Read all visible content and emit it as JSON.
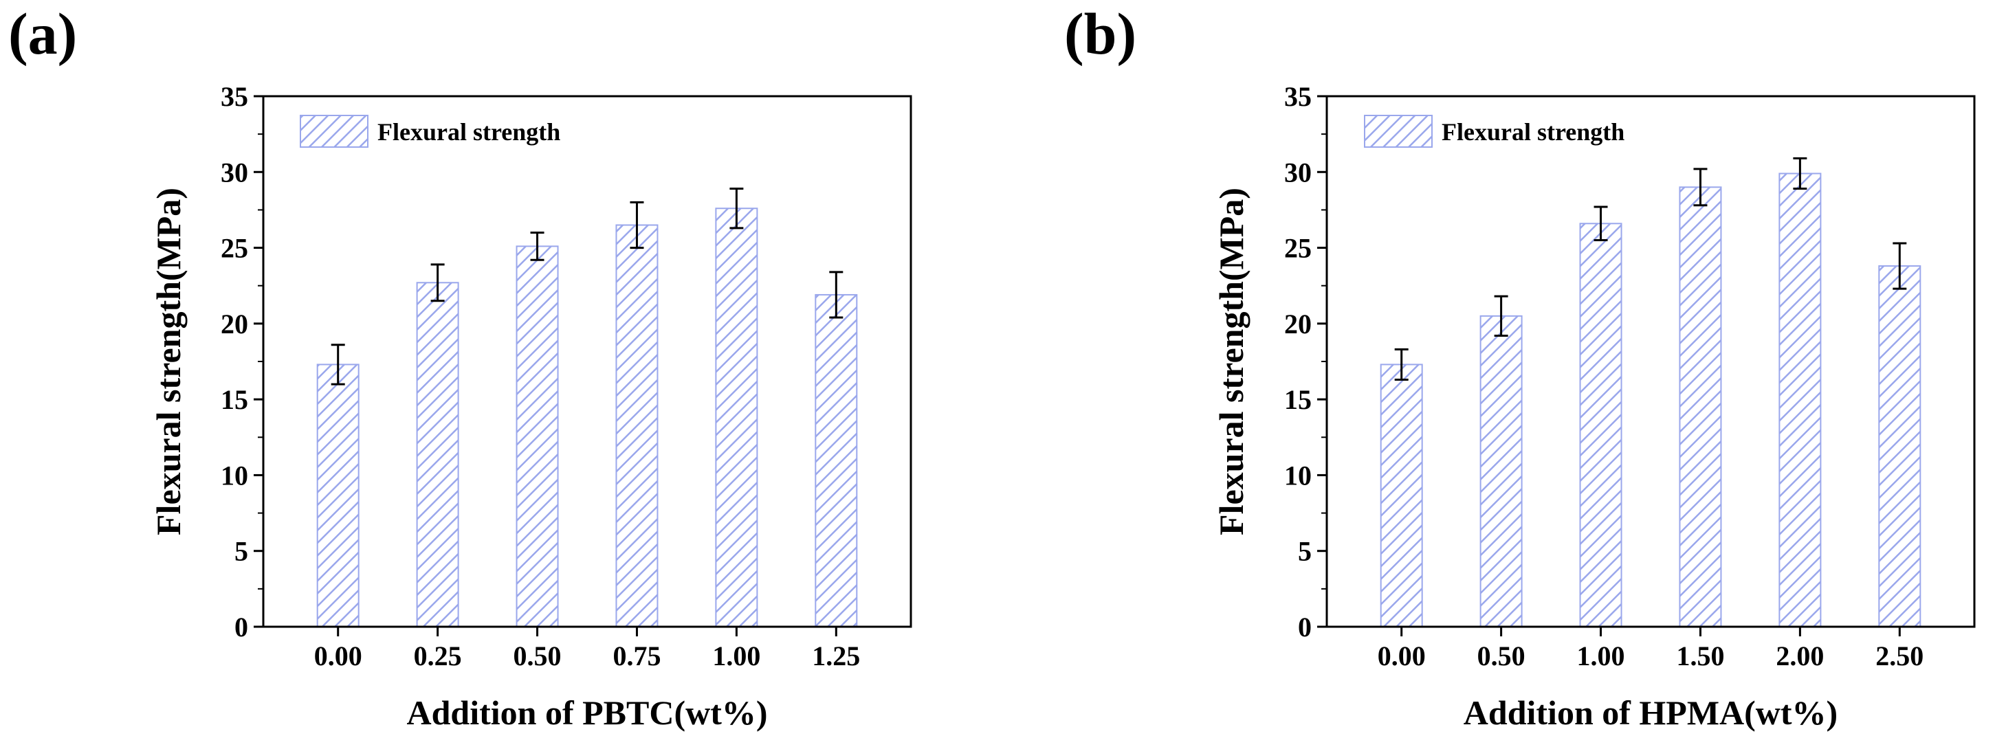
{
  "chart_data": [
    {
      "type": "bar",
      "panel_label": "(a)",
      "categories": [
        "0.00",
        "0.25",
        "0.50",
        "0.75",
        "1.00",
        "1.25"
      ],
      "series": [
        {
          "name": "Flexural strength",
          "values": [
            17.3,
            22.7,
            25.1,
            26.5,
            27.6,
            21.9
          ],
          "errors": [
            1.3,
            1.2,
            0.9,
            1.5,
            1.3,
            1.5
          ]
        }
      ],
      "xlabel": "Addition of PBTC(wt%)",
      "ylabel": "Flexural strength(MPa)",
      "ylim": [
        0,
        35
      ],
      "yticks": [
        "0",
        "5",
        "10",
        "15",
        "20",
        "25",
        "30",
        "35"
      ],
      "legend": "top-left",
      "grid": false
    },
    {
      "type": "bar",
      "panel_label": "(b)",
      "categories": [
        "0.00",
        "0.50",
        "1.00",
        "1.50",
        "2.00",
        "2.50"
      ],
      "series": [
        {
          "name": "Flexural strength",
          "values": [
            17.3,
            20.5,
            26.6,
            29.0,
            29.9,
            23.8
          ],
          "errors": [
            1.0,
            1.3,
            1.1,
            1.2,
            1.0,
            1.5
          ]
        }
      ],
      "xlabel": "Addition of HPMA(wt%)",
      "ylabel": "Flexural strength(MPa)",
      "ylim": [
        0,
        35
      ],
      "yticks": [
        "0",
        "5",
        "10",
        "15",
        "20",
        "25",
        "30",
        "35"
      ],
      "legend": "top-left",
      "grid": false
    }
  ],
  "colors": {
    "bar_fill": "#ffffff",
    "bar_hatch": "#9aa7ec",
    "bar_edge": "#9aa7ec",
    "axis": "#000000",
    "error_bar": "#000000"
  }
}
